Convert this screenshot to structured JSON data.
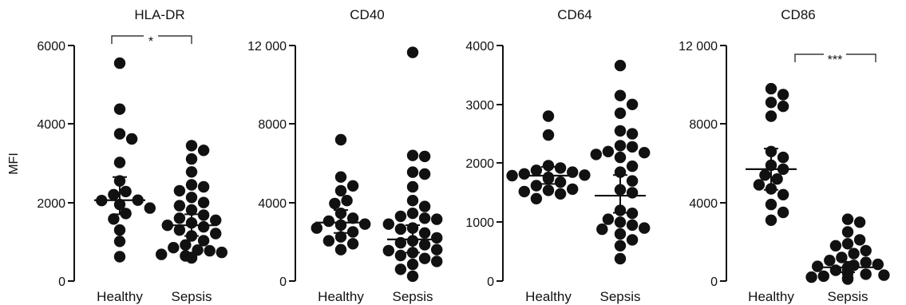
{
  "chart_data": [
    {
      "type": "scatter",
      "title": "HLA-DR",
      "ylabel": "MFI",
      "categories": [
        "Healthy",
        "Sepsis"
      ],
      "ylim": [
        0,
        6000
      ],
      "yticks": [
        "0",
        "2000",
        "4000",
        "6000"
      ],
      "yticks_values": [
        0,
        2000,
        4000,
        6000
      ],
      "series": [
        {
          "values": [
            5550,
            4380,
            3750,
            3620,
            3020,
            2550,
            2280,
            2200,
            2060,
            2050,
            1950,
            1860,
            1720,
            1580,
            1300,
            1010,
            620
          ]
        },
        {
          "values": [
            3450,
            3330,
            3110,
            2780,
            2450,
            2400,
            2300,
            2130,
            2000,
            1920,
            1810,
            1680,
            1600,
            1550,
            1480,
            1420,
            1380,
            1300,
            1210,
            1150,
            1030,
            920,
            850,
            790,
            770,
            730,
            680,
            640,
            600,
            590
          ]
        }
      ],
      "center": [
        2060,
        1420
      ],
      "error_upper": [
        2650,
        1700
      ],
      "error_lower": [
        1700,
        1150
      ],
      "significance": {
        "label": "*",
        "pair": [
          0,
          1
        ]
      }
    },
    {
      "type": "scatter",
      "title": "CD40",
      "ylabel": "",
      "categories": [
        "Healthy",
        "Sepsis"
      ],
      "ylim": [
        0,
        12000
      ],
      "yticks": [
        "0",
        "4000",
        "8000",
        "12 000"
      ],
      "yticks_values": [
        0,
        4000,
        8000,
        12000
      ],
      "series": [
        {
          "values": [
            7200,
            5300,
            4850,
            4600,
            4100,
            3950,
            3450,
            3200,
            3050,
            2900,
            2850,
            2700,
            2500,
            2250,
            2050,
            1900,
            1600
          ]
        },
        {
          "values": [
            11650,
            6400,
            6350,
            5550,
            5450,
            4800,
            4100,
            3800,
            3450,
            3300,
            3200,
            3150,
            2900,
            2700,
            2650,
            2450,
            2200,
            2050,
            1950,
            1850,
            1600,
            1550,
            1450,
            1300,
            1150,
            1000,
            850,
            600,
            250
          ]
        }
      ],
      "center": [
        2980,
        2120
      ],
      "error_upper": [
        3620,
        2850
      ],
      "error_lower": [
        2450,
        1450
      ]
    },
    {
      "type": "scatter",
      "title": "CD64",
      "ylabel": "",
      "categories": [
        "Healthy",
        "Sepsis"
      ],
      "ylim": [
        0,
        4000
      ],
      "yticks": [
        "0",
        "1000",
        "2000",
        "3000",
        "4000"
      ],
      "yticks_values": [
        0,
        1000,
        2000,
        3000,
        4000
      ],
      "series": [
        {
          "values": [
            2800,
            2480,
            1960,
            1920,
            1880,
            1850,
            1820,
            1800,
            1790,
            1760,
            1740,
            1680,
            1620,
            1560,
            1540,
            1520,
            1480,
            1400
          ]
        },
        {
          "values": [
            3660,
            3150,
            3000,
            2850,
            2550,
            2500,
            2300,
            2280,
            2200,
            2180,
            2150,
            2100,
            1950,
            1850,
            1700,
            1550,
            1500,
            1200,
            1150,
            1050,
            1000,
            950,
            900,
            880,
            800,
            700,
            600,
            380
          ]
        }
      ],
      "center": [
        1790,
        1450
      ],
      "error_upper": [
        1940,
        1800
      ],
      "error_lower": [
        1650,
        1160
      ]
    },
    {
      "type": "scatter",
      "title": "CD86",
      "ylabel": "",
      "categories": [
        "Healthy",
        "Sepsis"
      ],
      "ylim": [
        0,
        12000
      ],
      "yticks": [
        "0",
        "4000",
        "8000",
        "12 000"
      ],
      "yticks_values": [
        0,
        4000,
        8000,
        12000
      ],
      "series": [
        {
          "values": [
            9800,
            9500,
            9100,
            8900,
            8400,
            6600,
            6300,
            5900,
            5700,
            5400,
            5200,
            4900,
            4700,
            4400,
            3900,
            3500,
            3100
          ]
        },
        {
          "values": [
            3150,
            3000,
            2500,
            2100,
            1900,
            1800,
            1550,
            1400,
            1200,
            1050,
            950,
            850,
            800,
            750,
            700,
            650,
            600,
            550,
            500,
            450,
            400,
            350,
            300,
            250,
            200,
            150,
            100
          ]
        }
      ],
      "center": [
        5700,
        700
      ],
      "error_upper": [
        6750,
        980
      ],
      "error_lower": [
        4650,
        450
      ],
      "significance": {
        "label": "***",
        "pair": [
          0,
          1
        ]
      }
    }
  ]
}
